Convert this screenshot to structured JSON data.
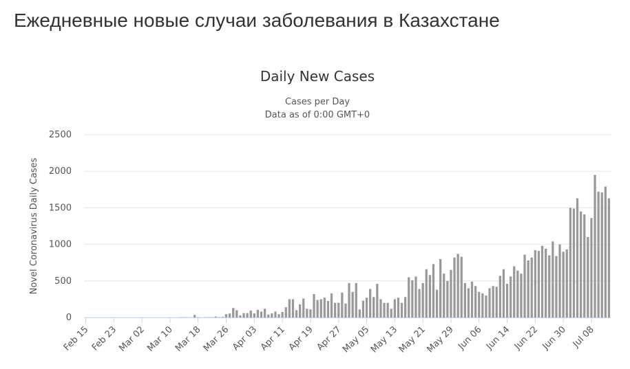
{
  "page_title": "Ежедневные новые случаи заболевания в Казахстане",
  "chart_data": {
    "type": "bar",
    "title": "Daily New Cases",
    "subtitle": [
      "Cases per Day",
      "Data as of 0:00 GMT+0"
    ],
    "y_label": "Novel Coronavirus Daily Cases",
    "color": "#999999",
    "grid": true,
    "ylim": [
      0,
      2500
    ],
    "yticks": [
      0,
      500,
      1000,
      1500,
      2000,
      2500
    ],
    "categories": [
      "Feb 15",
      null,
      null,
      null,
      null,
      null,
      null,
      null,
      "Feb 23",
      null,
      null,
      null,
      null,
      null,
      null,
      null,
      "Mar 02",
      null,
      null,
      null,
      null,
      null,
      null,
      null,
      "Mar 10",
      null,
      null,
      null,
      null,
      null,
      null,
      null,
      "Mar 18",
      null,
      null,
      null,
      null,
      null,
      null,
      null,
      "Mar 26",
      null,
      null,
      null,
      null,
      null,
      null,
      null,
      "Apr 03",
      null,
      null,
      null,
      null,
      null,
      null,
      null,
      "Apr 11",
      null,
      null,
      null,
      null,
      null,
      null,
      null,
      "Apr 19",
      null,
      null,
      null,
      null,
      null,
      null,
      null,
      "Apr 27",
      null,
      null,
      null,
      null,
      null,
      null,
      null,
      "May 05",
      null,
      null,
      null,
      null,
      null,
      null,
      null,
      "May 13",
      null,
      null,
      null,
      null,
      null,
      null,
      null,
      "May 21",
      null,
      null,
      null,
      null,
      null,
      null,
      null,
      "May 29",
      null,
      null,
      null,
      null,
      null,
      null,
      null,
      "Jun 06",
      null,
      null,
      null,
      null,
      null,
      null,
      null,
      "Jun 14",
      null,
      null,
      null,
      null,
      null,
      null,
      null,
      "Jun 22",
      null,
      null,
      null,
      null,
      null,
      null,
      null,
      "Jun 30",
      null,
      null,
      null,
      null,
      null,
      null,
      null,
      "Jul 08",
      null,
      null,
      null,
      null,
      null
    ],
    "values": [
      0,
      0,
      0,
      0,
      0,
      0,
      0,
      0,
      0,
      0,
      0,
      0,
      0,
      0,
      0,
      0,
      0,
      0,
      0,
      0,
      0,
      0,
      0,
      0,
      0,
      0,
      0,
      2,
      4,
      3,
      1,
      35,
      3,
      0,
      2,
      4,
      3,
      12,
      5,
      8,
      45,
      55,
      130,
      100,
      30,
      60,
      60,
      95,
      55,
      105,
      80,
      120,
      40,
      55,
      80,
      45,
      75,
      140,
      250,
      250,
      100,
      180,
      260,
      120,
      110,
      320,
      240,
      250,
      270,
      225,
      330,
      200,
      200,
      340,
      190,
      470,
      350,
      470,
      110,
      230,
      270,
      390,
      280,
      460,
      250,
      200,
      200,
      120,
      250,
      270,
      200,
      280,
      550,
      510,
      560,
      390,
      470,
      660,
      580,
      730,
      380,
      800,
      600,
      500,
      650,
      820,
      870,
      830,
      470,
      400,
      490,
      430,
      350,
      330,
      300,
      400,
      430,
      420,
      570,
      660,
      460,
      560,
      700,
      640,
      600,
      860,
      780,
      820,
      920,
      910,
      980,
      940,
      850,
      1040,
      840,
      1000,
      900,
      930,
      1500,
      1490,
      1630,
      1450,
      1410,
      1100,
      1360,
      1950,
      1720,
      1710,
      1790,
      1630
    ]
  }
}
